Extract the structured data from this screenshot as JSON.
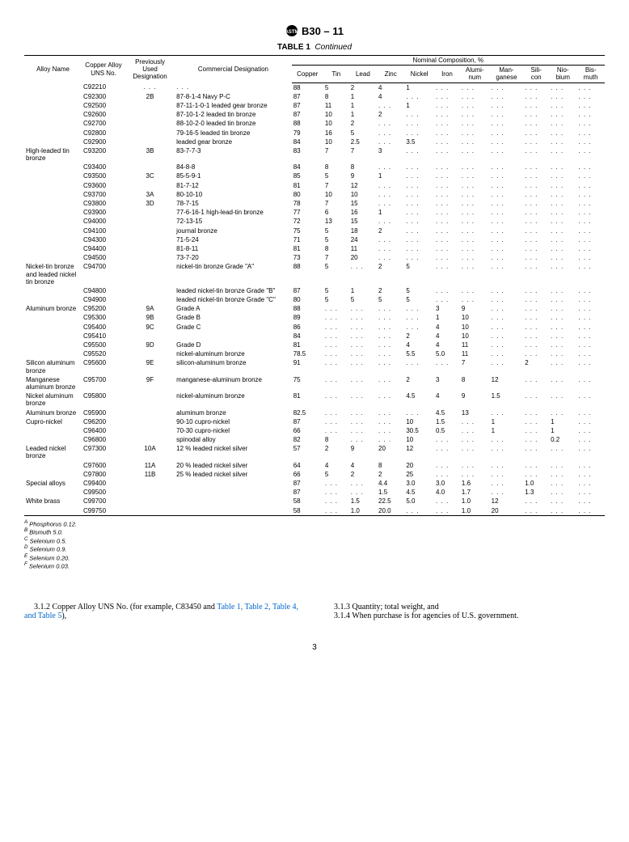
{
  "doc": {
    "standard": "B30 – 11",
    "table_label": "TABLE 1",
    "table_cont": "Continued",
    "page_number": "3"
  },
  "columns": {
    "alloy": "Alloy Name",
    "uns": "Copper Alloy UNS No.",
    "prev": "Previously Used Designation",
    "comm": "Commercial Designation",
    "nominal": "Nominal Composition, %",
    "copper": "Copper",
    "tin": "Tin",
    "lead": "Lead",
    "zinc": "Zinc",
    "nickel": "Nickel",
    "iron": "Iron",
    "alum": "Alumi-\nnum",
    "mang": "Man-\nganese",
    "sili": "Sili-\ncon",
    "niob": "Nio-\nbium",
    "bis": "Bis-\nmuth"
  },
  "ellipsis": ". . .",
  "rows": [
    {
      "a": "",
      "u": "C92210",
      "p": ". . .",
      "c": ". . .",
      "cu": "88",
      "sn": "5",
      "pb": "2",
      "zn": "4",
      "ni": "1",
      "fe": ". . .",
      "al": ". . .",
      "mn": ". . .",
      "si": ". . .",
      "nb": ". . .",
      "bi": ". . ."
    },
    {
      "a": "",
      "u": "C92300",
      "p": "2B",
      "c": "87-8-1-4 Navy P-C",
      "cu": "87",
      "sn": "8",
      "pb": "1",
      "zn": "4",
      "ni": ". . .",
      "fe": ". . .",
      "al": ". . .",
      "mn": ". . .",
      "si": ". . .",
      "nb": ". . .",
      "bi": ". . ."
    },
    {
      "a": "",
      "u": "C92500",
      "p": "",
      "c": "87-11-1-0-1 leaded gear bronze",
      "cu": "87",
      "sn": "11",
      "pb": "1",
      "zn": ". . .",
      "ni": "1",
      "fe": ". . .",
      "al": ". . .",
      "mn": ". . .",
      "si": ". . .",
      "nb": ". . .",
      "bi": ". . ."
    },
    {
      "a": "",
      "u": "C92600",
      "p": "",
      "c": "87-10-1-2 leaded tin bronze",
      "cu": "87",
      "sn": "10",
      "pb": "1",
      "zn": "2",
      "ni": ". . .",
      "fe": ". . .",
      "al": ". . .",
      "mn": ". . .",
      "si": ". . .",
      "nb": ". . .",
      "bi": ". . ."
    },
    {
      "a": "",
      "u": "C92700",
      "p": "",
      "c": "88-10-2-0 leaded tin bronze",
      "cu": "88",
      "sn": "10",
      "pb": "2",
      "zn": ". . .",
      "ni": ". . .",
      "fe": ". . .",
      "al": ". . .",
      "mn": ". . .",
      "si": ". . .",
      "nb": ". . .",
      "bi": ". . ."
    },
    {
      "a": "",
      "u": "C92800",
      "p": "",
      "c": "79-16-5 leaded tin bronze",
      "cu": "79",
      "sn": "16",
      "pb": "5",
      "zn": ". . .",
      "ni": ". . .",
      "fe": ". . .",
      "al": ". . .",
      "mn": ". . .",
      "si": ". . .",
      "nb": ". . .",
      "bi": ". . ."
    },
    {
      "a": "",
      "u": "C92900",
      "p": "",
      "c": "leaded gear bronze",
      "cu": "84",
      "sn": "10",
      "pb": "2.5",
      "zn": ". . .",
      "ni": "3.5",
      "fe": ". . .",
      "al": ". . .",
      "mn": ". . .",
      "si": ". . .",
      "nb": ". . .",
      "bi": ". . ."
    },
    {
      "a": "High-leaded tin bronze",
      "u": "C93200",
      "p": "3B",
      "c": "83-7-7-3",
      "cu": "83",
      "sn": "7",
      "pb": "7",
      "zn": "3",
      "ni": ". . .",
      "fe": ". . .",
      "al": ". . .",
      "mn": ". . .",
      "si": ". . .",
      "nb": ". . .",
      "bi": ". . ."
    },
    {
      "a": "",
      "u": "C93400",
      "p": "",
      "c": "84-8-8",
      "cu": "84",
      "sn": "8",
      "pb": "8",
      "zn": ". . .",
      "ni": ". . .",
      "fe": ". . .",
      "al": ". . .",
      "mn": ". . .",
      "si": ". . .",
      "nb": ". . .",
      "bi": ". . ."
    },
    {
      "a": "",
      "u": "C93500",
      "p": "3C",
      "c": "85-5-9-1",
      "cu": "85",
      "sn": "5",
      "pb": "9",
      "zn": "1",
      "ni": ". . .",
      "fe": ". . .",
      "al": ". . .",
      "mn": ". . .",
      "si": ". . .",
      "nb": ". . .",
      "bi": ". . ."
    },
    {
      "a": "",
      "u": "C93600",
      "p": "",
      "c": "81-7-12",
      "cu": "81",
      "sn": "7",
      "pb": "12",
      "zn": ". . .",
      "ni": ". . .",
      "fe": ". . .",
      "al": ". . .",
      "mn": ". . .",
      "si": ". . .",
      "nb": ". . .",
      "bi": ". . ."
    },
    {
      "a": "",
      "u": "C93700",
      "p": "3A",
      "c": "80-10-10",
      "cu": "80",
      "sn": "10",
      "pb": "10",
      "zn": ". . .",
      "ni": ". . .",
      "fe": ". . .",
      "al": ". . .",
      "mn": ". . .",
      "si": ". . .",
      "nb": ". . .",
      "bi": ". . ."
    },
    {
      "a": "",
      "u": "C93800",
      "p": "3D",
      "c": "78-7-15",
      "cu": "78",
      "sn": "7",
      "pb": "15",
      "zn": ". . .",
      "ni": ". . .",
      "fe": ". . .",
      "al": ". . .",
      "mn": ". . .",
      "si": ". . .",
      "nb": ". . .",
      "bi": ". . ."
    },
    {
      "a": "",
      "u": "C93900",
      "p": "",
      "c": "77-6-16-1 high-lead-tin bronze",
      "cu": "77",
      "sn": "6",
      "pb": "16",
      "zn": "1",
      "ni": ". . .",
      "fe": ". . .",
      "al": ". . .",
      "mn": ". . .",
      "si": ". . .",
      "nb": ". . .",
      "bi": ". . ."
    },
    {
      "a": "",
      "u": "C94000",
      "p": "",
      "c": "72-13-15",
      "cu": "72",
      "sn": "13",
      "pb": "15",
      "zn": ". . .",
      "ni": ". . .",
      "fe": ". . .",
      "al": ". . .",
      "mn": ". . .",
      "si": ". . .",
      "nb": ". . .",
      "bi": ". . ."
    },
    {
      "a": "",
      "u": "C94100",
      "p": "",
      "c": "journal bronze",
      "cu": "75",
      "sn": "5",
      "pb": "18",
      "zn": "2",
      "ni": ". . .",
      "fe": ". . .",
      "al": ". . .",
      "mn": ". . .",
      "si": ". . .",
      "nb": ". . .",
      "bi": ". . ."
    },
    {
      "a": "",
      "u": "C94300",
      "p": "",
      "c": "71-5-24",
      "cu": "71",
      "sn": "5",
      "pb": "24",
      "zn": ". . .",
      "ni": ". . .",
      "fe": ". . .",
      "al": ". . .",
      "mn": ". . .",
      "si": ". . .",
      "nb": ". . .",
      "bi": ". . ."
    },
    {
      "a": "",
      "u": "C94400",
      "p": "",
      "c": "81-8-11",
      "cu": "81",
      "sn": "8",
      "pb": "11",
      "zn": ". . .",
      "ni": ". . .",
      "fe": ". . .",
      "al": ". . .",
      "mn": ". . .",
      "si": ". . .",
      "nb": ". . .",
      "bi": ". . ."
    },
    {
      "a": "",
      "u": "C94500",
      "p": "",
      "c": "73-7-20",
      "cu": "73",
      "sn": "7",
      "pb": "20",
      "zn": ". . .",
      "ni": ". . .",
      "fe": ". . .",
      "al": ". . .",
      "mn": ". . .",
      "si": ". . .",
      "nb": ". . .",
      "bi": ". . ."
    },
    {
      "a": "Nickel-tin bronze and leaded nickel tin bronze",
      "u": "C94700",
      "p": "",
      "c": "nickel-tin bronze Grade \"A\"",
      "cu": "88",
      "sn": "5",
      "pb": ". . .",
      "zn": "2",
      "ni": "5",
      "fe": ". . .",
      "al": ". . .",
      "mn": ". . .",
      "si": ". . .",
      "nb": ". . .",
      "bi": ". . ."
    },
    {
      "a": "",
      "u": "C94800",
      "p": "",
      "c": "leaded nickel-tin bronze Grade \"B\"",
      "cu": "87",
      "sn": "5",
      "pb": "1",
      "zn": "2",
      "ni": "5",
      "fe": ". . .",
      "al": ". . .",
      "mn": ". . .",
      "si": ". . .",
      "nb": ". . .",
      "bi": ". . ."
    },
    {
      "a": "",
      "u": "C94900",
      "p": "",
      "c": "leaded nickel-tin bronze Grade \"C\"",
      "cu": "80",
      "sn": "5",
      "pb": "5",
      "zn": "5",
      "ni": "5",
      "fe": ". . .",
      "al": ". . .",
      "mn": ". . .",
      "si": ". . .",
      "nb": ". . .",
      "bi": ". . ."
    },
    {
      "a": "Aluminum bronze",
      "u": "C95200",
      "p": "9A",
      "c": "Grade A",
      "cu": "88",
      "sn": ". . .",
      "pb": ". . .",
      "zn": ". . .",
      "ni": ". . .",
      "fe": "3",
      "al": "9",
      "mn": ". . .",
      "si": ". . .",
      "nb": ". . .",
      "bi": ". . ."
    },
    {
      "a": "",
      "u": "C95300",
      "p": "9B",
      "c": "Grade B",
      "cu": "89",
      "sn": ". . .",
      "pb": ". . .",
      "zn": ". . .",
      "ni": ". . .",
      "fe": "1",
      "al": "10",
      "mn": ". . .",
      "si": ". . .",
      "nb": ". . .",
      "bi": ". . ."
    },
    {
      "a": "",
      "u": "C95400",
      "p": "9C",
      "c": "Grade C",
      "cu": "86",
      "sn": ". . .",
      "pb": ". . .",
      "zn": ". . .",
      "ni": ". . .",
      "fe": "4",
      "al": "10",
      "mn": ". . .",
      "si": ". . .",
      "nb": ". . .",
      "bi": ". . ."
    },
    {
      "a": "",
      "u": "C95410",
      "p": "",
      "c": "",
      "cu": "84",
      "sn": ". . .",
      "pb": ". . .",
      "zn": ". . .",
      "ni": "2",
      "fe": "4",
      "al": "10",
      "mn": ". . .",
      "si": ". . .",
      "nb": ". . .",
      "bi": ". . ."
    },
    {
      "a": "",
      "u": "C95500",
      "p": "9D",
      "c": "Grade D",
      "cu": "81",
      "sn": ". . .",
      "pb": ". . .",
      "zn": ". . .",
      "ni": "4",
      "fe": "4",
      "al": "11",
      "mn": ". . .",
      "si": ". . .",
      "nb": ". . .",
      "bi": ". . ."
    },
    {
      "a": "",
      "u": "C95520",
      "p": "",
      "c": "nickel-aluminum bronze",
      "cu": "78.5",
      "sn": ". . .",
      "pb": ". . .",
      "zn": ". . .",
      "ni": "5.5",
      "fe": "5.0",
      "al": "11",
      "mn": ". . .",
      "si": ". . .",
      "nb": ". . .",
      "bi": ". . ."
    },
    {
      "a": "Silicon aluminum bronze",
      "u": "C95600",
      "p": "9E",
      "c": "silicon-aluminum bronze",
      "cu": "91",
      "sn": ". . .",
      "pb": ". . .",
      "zn": ". . .",
      "ni": ". . .",
      "fe": ". . .",
      "al": "7",
      "mn": ". . .",
      "si": "2",
      "nb": ". . .",
      "bi": ". . ."
    },
    {
      "a": "Manganese aluminum bronze",
      "u": "C95700",
      "p": "9F",
      "c": "manganese-aluminum bronze",
      "cu": "75",
      "sn": ". . .",
      "pb": ". . .",
      "zn": ". . .",
      "ni": "2",
      "fe": "3",
      "al": "8",
      "mn": "12",
      "si": ". . .",
      "nb": ". . .",
      "bi": ". . ."
    },
    {
      "a": "Nickel aluminum bronze",
      "u": "C95800",
      "p": "",
      "c": "nickel-aluminum bronze",
      "cu": "81",
      "sn": ". . .",
      "pb": ". . .",
      "zn": ". . .",
      "ni": "4.5",
      "fe": "4",
      "al": "9",
      "mn": "1.5",
      "si": ". . .",
      "nb": ". . .",
      "bi": ". . ."
    },
    {
      "a": "Aluminum bronze",
      "u": "C95900",
      "p": "",
      "c": "aluminum bronze",
      "cu": "82.5",
      "sn": ". . .",
      "pb": ". . .",
      "zn": ". . .",
      "ni": ". . .",
      "fe": "4.5",
      "al": "13",
      "mn": ". . .",
      "si": ". . .",
      "nb": ". . .",
      "bi": ". . ."
    },
    {
      "a": "Cupro-nickel",
      "u": "C96200",
      "p": "",
      "c": "90-10 cupro-nickel",
      "cu": "87",
      "sn": ". . .",
      "pb": ". . .",
      "zn": ". . .",
      "ni": "10",
      "fe": "1.5",
      "al": ". . .",
      "mn": "1",
      "si": ". . .",
      "nb": "1",
      "bi": ". . ."
    },
    {
      "a": "",
      "u": "C96400",
      "p": "",
      "c": "70-30 cupro-nickel",
      "cu": "66",
      "sn": ". . .",
      "pb": ". . .",
      "zn": ". . .",
      "ni": "30.5",
      "fe": "0.5",
      "al": ". . .",
      "mn": "1",
      "si": ". . .",
      "nb": "1",
      "bi": ". . ."
    },
    {
      "a": "",
      "u": "C96800",
      "p": "",
      "c": "spinodal alloy",
      "cu": "82",
      "sn": "8",
      "pb": ". . .",
      "zn": ". . .",
      "ni": "10",
      "fe": ". . .",
      "al": ". . .",
      "mn": ". . .",
      "si": ". . .",
      "nb": "0.2",
      "bi": ". . ."
    },
    {
      "a": "Leaded nickel bronze",
      "u": "C97300",
      "p": "10A",
      "c": "12 % leaded nickel silver",
      "cu": "57",
      "sn": "2",
      "pb": "9",
      "zn": "20",
      "ni": "12",
      "fe": ". . .",
      "al": ". . .",
      "mn": ". . .",
      "si": ". . .",
      "nb": ". . .",
      "bi": ". . ."
    },
    {
      "a": "",
      "u": "C97600",
      "p": "11A",
      "c": "20 % leaded nickel silver",
      "cu": "64",
      "sn": "4",
      "pb": "4",
      "zn": "8",
      "ni": "20",
      "fe": ". . .",
      "al": ". . .",
      "mn": ". . .",
      "si": ". . .",
      "nb": ". . .",
      "bi": ". . ."
    },
    {
      "a": "",
      "u": "C97800",
      "p": "11B",
      "c": "25 % leaded nickel silver",
      "cu": "66",
      "sn": "5",
      "pb": "2",
      "zn": "2",
      "ni": "25",
      "fe": ". . .",
      "al": ". . .",
      "mn": ". . .",
      "si": ". . .",
      "nb": ". . .",
      "bi": ". . ."
    },
    {
      "a": "Special alloys",
      "u": "C99400",
      "p": "",
      "c": "",
      "cu": "87",
      "sn": ". . .",
      "pb": ". . .",
      "zn": "4.4",
      "ni": "3.0",
      "fe": "3.0",
      "al": "1.6",
      "mn": ". . .",
      "si": "1.0",
      "nb": ". . .",
      "bi": ". . ."
    },
    {
      "a": "",
      "u": "C99500",
      "p": "",
      "c": "",
      "cu": "87",
      "sn": ". . .",
      "pb": ". . .",
      "zn": "1.5",
      "ni": "4.5",
      "fe": "4.0",
      "al": "1.7",
      "mn": ". . .",
      "si": "1.3",
      "nb": ". . .",
      "bi": ". . ."
    },
    {
      "a": "White brass",
      "u": "C99700",
      "p": "",
      "c": "",
      "cu": "58",
      "sn": ". . .",
      "pb": "1.5",
      "zn": "22.5",
      "ni": "5.0",
      "fe": ". . .",
      "al": "1.0",
      "mn": "12",
      "si": ". . .",
      "nb": ". . .",
      "bi": ". . ."
    },
    {
      "a": "",
      "u": "C99750",
      "p": "",
      "c": "",
      "cu": "58",
      "sn": ". . .",
      "pb": "1.0",
      "zn": "20.0",
      "ni": ". . .",
      "fe": ". . .",
      "al": "1.0",
      "mn": "20",
      "si": ". . .",
      "nb": ". . .",
      "bi": ". . ."
    }
  ],
  "footnotes": [
    {
      "s": "A",
      "t": "Phosphorus 0.12."
    },
    {
      "s": "B",
      "t": "Bismuth 5.0."
    },
    {
      "s": "C",
      "t": "Selenium 0.5."
    },
    {
      "s": "D",
      "t": "Selenium 0.9."
    },
    {
      "s": "E",
      "t": "Selenium 0.20."
    },
    {
      "s": "F",
      "t": "Selenium 0.03."
    }
  ],
  "body": {
    "p1_a": "3.1.2 Copper Alloy UNS No. (for example, C83450 and ",
    "p1_refs": "Table 1, Table 2, Table 4, and Table 5",
    "p1_b": "),",
    "p2": "3.1.3 Quantity; total weight, and",
    "p3": "3.1.4 When purchase is for agencies of U.S. government."
  },
  "style": {
    "link_color": "#0066cc"
  }
}
